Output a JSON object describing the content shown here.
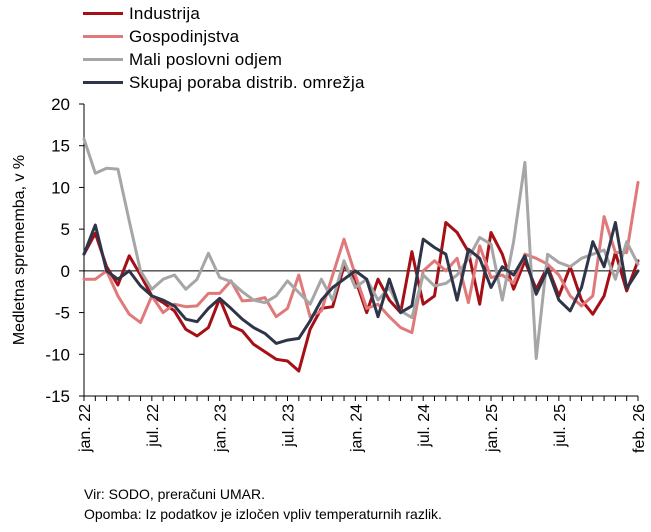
{
  "chart_data": {
    "type": "line",
    "title": "",
    "xlabel": "",
    "ylabel": "Medletna sprememba, v %",
    "ylim": [
      -15,
      20
    ],
    "yticks": [
      -15,
      -10,
      -5,
      0,
      5,
      10,
      15,
      20
    ],
    "categories": [
      "jan. 22",
      "feb. 22",
      "mar. 22",
      "apr. 22",
      "maj 22",
      "jun. 22",
      "jul. 22",
      "avg. 22",
      "sep. 22",
      "okt. 22",
      "nov. 22",
      "dec. 22",
      "jan. 23",
      "feb. 23",
      "mar. 23",
      "apr. 23",
      "maj 23",
      "jun. 23",
      "jul. 23",
      "avg. 23",
      "sep. 23",
      "okt. 23",
      "nov. 23",
      "dec. 23",
      "jan. 24",
      "feb. 24",
      "mar. 24",
      "apr. 24",
      "maj 24",
      "jun. 24",
      "jul. 24",
      "avg. 24",
      "sep. 24",
      "okt. 24",
      "nov. 24",
      "dec. 24",
      "jan. 25",
      "feb. 25",
      "mar. 25",
      "apr. 25",
      "maj 25",
      "jun. 25",
      "jul. 25",
      "avg. 25",
      "sep. 25",
      "okt. 25",
      "nov. 25",
      "dec. 25",
      "jan. 26",
      "feb. 26"
    ],
    "tick_labels": [
      {
        "index": 0,
        "label": "jan. 22"
      },
      {
        "index": 6,
        "label": "jul. 22"
      },
      {
        "index": 12,
        "label": "jan. 23"
      },
      {
        "index": 18,
        "label": "jul. 23"
      },
      {
        "index": 24,
        "label": "jan. 24"
      },
      {
        "index": 30,
        "label": "jul. 24"
      },
      {
        "index": 36,
        "label": "jan. 25"
      },
      {
        "index": 42,
        "label": "jul. 25"
      },
      {
        "index": 49,
        "label": "feb. 26"
      }
    ],
    "series": [
      {
        "name": "Industrija",
        "color": "#a50f15",
        "values": [
          2.0,
          4.5,
          0.5,
          -1.7,
          1.8,
          -0.5,
          -3.0,
          -3.8,
          -4.8,
          -7.0,
          -7.8,
          -6.8,
          -3.3,
          -6.6,
          -7.2,
          -8.8,
          -9.7,
          -10.6,
          -10.8,
          -12.0,
          -7.0,
          -4.5,
          -4.3,
          0.6,
          -1.0,
          -5.0,
          -1.0,
          -3.5,
          -5.0,
          2.3,
          -4.0,
          -3.0,
          5.8,
          4.6,
          2.3,
          -4.0,
          4.6,
          2.0,
          -2.2,
          1.2,
          -2.2,
          0.5,
          -3.0,
          0.5,
          -3.5,
          -5.2,
          -3.0,
          2.2,
          -2.4,
          1.2
        ]
      },
      {
        "name": "Gospodinjstva",
        "color": "#e07a7a",
        "values": [
          -1.0,
          -1.0,
          0.0,
          -3.0,
          -5.2,
          -6.2,
          -3.0,
          -5.0,
          -4.0,
          -4.3,
          -4.2,
          -2.7,
          -2.7,
          -1.2,
          -3.6,
          -3.5,
          -3.2,
          -5.5,
          -4.5,
          -0.5,
          -5.5,
          -4.8,
          -0.5,
          3.8,
          -0.5,
          -4.5,
          -4.0,
          -5.5,
          -6.8,
          -7.4,
          0.0,
          1.2,
          0.0,
          1.5,
          -3.8,
          3.0,
          -0.8,
          -0.5,
          -1.5,
          2.0,
          1.5,
          0.8,
          -0.5,
          -3.0,
          -4.2,
          -3.0,
          6.5,
          2.2,
          2.2,
          10.6
        ]
      },
      {
        "name": "Mali poslovni odjem",
        "color": "#a6a6a6",
        "values": [
          15.8,
          11.7,
          12.3,
          12.2,
          6.0,
          0.0,
          -2.2,
          -1.0,
          -0.5,
          -2.2,
          -1.0,
          2.1,
          -0.8,
          -1.3,
          -2.5,
          -3.5,
          -3.8,
          -3.0,
          -1.2,
          -2.6,
          -4.0,
          -1.0,
          -3.5,
          1.2,
          -2.0,
          -1.0,
          -3.5,
          -2.0,
          -4.8,
          -5.6,
          -0.5,
          -1.8,
          -1.5,
          -0.5,
          1.5,
          4.0,
          3.2,
          -3.5,
          3.5,
          13.0,
          -10.5,
          2.0,
          1.0,
          0.5,
          1.5,
          2.0,
          2.5,
          -1.0,
          3.5,
          0.8
        ]
      },
      {
        "name": "Skupaj poraba distrib. omrežja",
        "color": "#2f3549",
        "values": [
          2.0,
          5.5,
          0.0,
          -1.0,
          0.0,
          -1.8,
          -3.0,
          -3.5,
          -4.2,
          -5.8,
          -6.1,
          -4.5,
          -3.3,
          -4.5,
          -5.8,
          -6.8,
          -7.5,
          -8.7,
          -8.3,
          -8.1,
          -6.0,
          -3.5,
          -2.0,
          -1.0,
          0.0,
          -1.0,
          -5.5,
          -1.0,
          -5.0,
          -4.2,
          3.8,
          2.8,
          2.0,
          -3.5,
          2.6,
          1.5,
          -2.0,
          0.5,
          -0.5,
          1.8,
          -2.8,
          0.2,
          -3.5,
          -4.8,
          -2.0,
          3.5,
          0.5,
          5.8,
          -2.1,
          0.0
        ]
      }
    ]
  },
  "footnotes": {
    "source": "Vir: SODO, preračuni UMAR.",
    "note": "Opomba: Iz podatkov je izločen vpliv temperaturnih razlik."
  }
}
